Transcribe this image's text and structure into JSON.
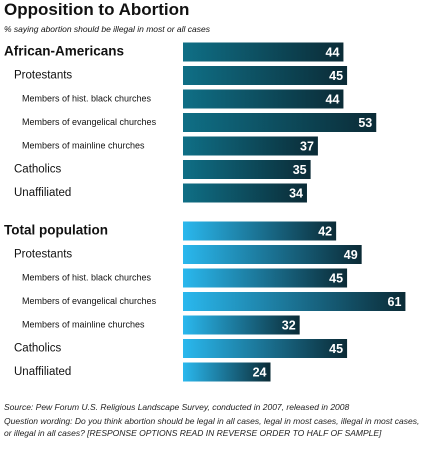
{
  "header": {
    "title": "Opposition to Abortion",
    "subtitle": "% saying abortion should be illegal in most or all cases"
  },
  "footer": {
    "source": "Source: Pew Forum U.S. Religious Landscape Survey, conducted in 2007, released in 2008",
    "question": "Question wording: Do you think abortion should be legal in all cases, legal in most cases, illegal in most cases, or illegal in all cases? [RESPONSE OPTIONS READ IN REVERSE ORDER TO HALF OF SAMPLE]"
  },
  "chart_data": {
    "type": "bar",
    "orientation": "horizontal",
    "xlim": [
      0,
      65
    ],
    "grid": false,
    "groups": [
      {
        "name": "African-Americans",
        "color_light": "#0f6f86",
        "color_dark": "#0b2b36",
        "categories": [
          "African-Americans",
          "Protestants",
          "Members of hist. black churches",
          "Members of evangelical churches",
          "Members of mainline churches",
          "Catholics",
          "Unaffiliated"
        ],
        "levels": [
          0,
          1,
          2,
          2,
          2,
          1,
          1
        ],
        "values": [
          44,
          45,
          44,
          53,
          37,
          35,
          34
        ]
      },
      {
        "name": "Total population",
        "color_light": "#2ab8ee",
        "color_dark": "#0b2b36",
        "categories": [
          "Total population",
          "Protestants",
          "Members of hist. black churches",
          "Members of evangelical churches",
          "Members of mainline churches",
          "Catholics",
          "Unaffiliated"
        ],
        "levels": [
          0,
          1,
          2,
          2,
          2,
          1,
          1
        ],
        "values": [
          42,
          49,
          45,
          61,
          32,
          45,
          24
        ]
      }
    ]
  }
}
